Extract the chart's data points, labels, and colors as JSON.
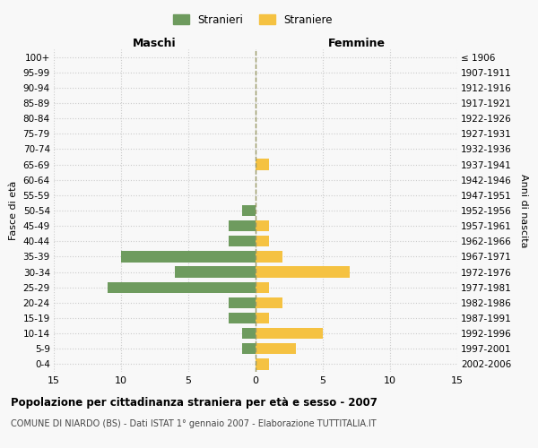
{
  "age_groups": [
    "100+",
    "95-99",
    "90-94",
    "85-89",
    "80-84",
    "75-79",
    "70-74",
    "65-69",
    "60-64",
    "55-59",
    "50-54",
    "45-49",
    "40-44",
    "35-39",
    "30-34",
    "25-29",
    "20-24",
    "15-19",
    "10-14",
    "5-9",
    "0-4"
  ],
  "birth_years": [
    "≤ 1906",
    "1907-1911",
    "1912-1916",
    "1917-1921",
    "1922-1926",
    "1927-1931",
    "1932-1936",
    "1937-1941",
    "1942-1946",
    "1947-1951",
    "1952-1956",
    "1957-1961",
    "1962-1966",
    "1967-1971",
    "1972-1976",
    "1977-1981",
    "1982-1986",
    "1987-1991",
    "1992-1996",
    "1997-2001",
    "2002-2006"
  ],
  "males": [
    0,
    0,
    0,
    0,
    0,
    0,
    0,
    0,
    0,
    0,
    1,
    2,
    2,
    10,
    6,
    11,
    2,
    2,
    1,
    1,
    0
  ],
  "females": [
    0,
    0,
    0,
    0,
    0,
    0,
    0,
    1,
    0,
    0,
    0,
    1,
    1,
    2,
    7,
    1,
    2,
    1,
    5,
    3,
    1
  ],
  "male_color": "#6e9b5e",
  "female_color": "#f5c242",
  "title": "Popolazione per cittadinanza straniera per età e sesso - 2007",
  "subtitle": "COMUNE DI NIARDO (BS) - Dati ISTAT 1° gennaio 2007 - Elaborazione TUTTITALIA.IT",
  "xlabel_left": "Maschi",
  "xlabel_right": "Femmine",
  "ylabel_left": "Fasce di età",
  "ylabel_right": "Anni di nascita",
  "legend_male": "Stranieri",
  "legend_female": "Straniere",
  "xlim": 15,
  "bg_color": "#f8f8f8",
  "grid_color": "#cccccc",
  "dashed_line_color": "#999966"
}
